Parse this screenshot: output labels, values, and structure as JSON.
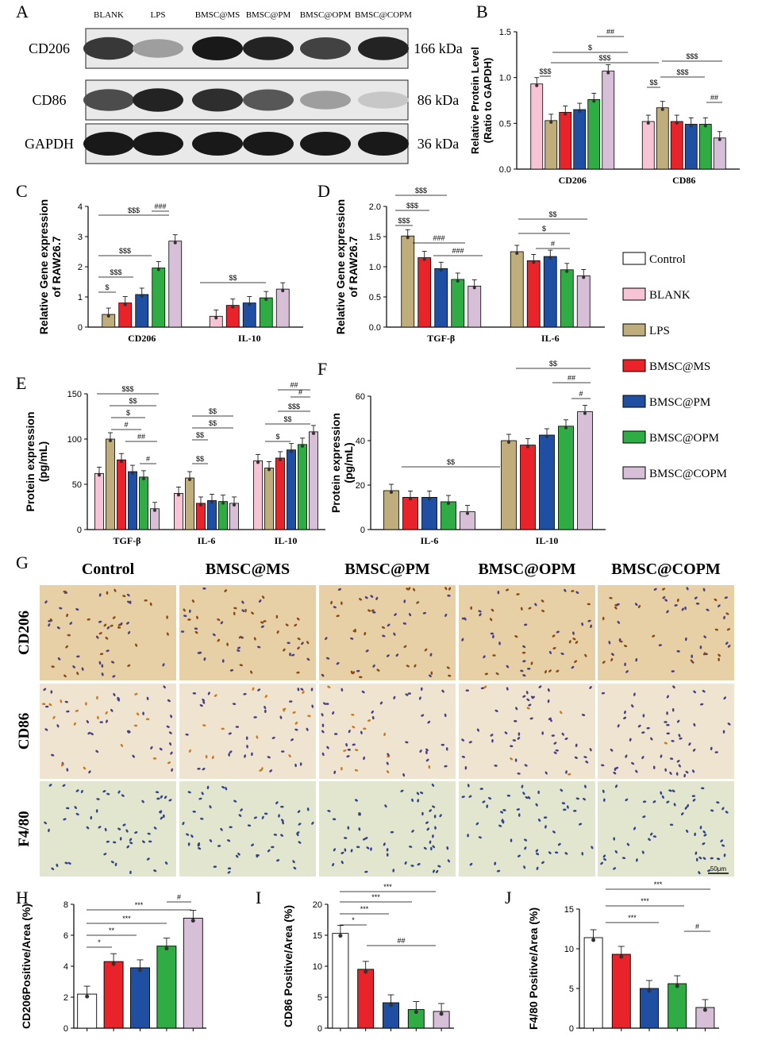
{
  "panel_letters": {
    "A": "A",
    "B": "B",
    "C": "C",
    "D": "D",
    "E": "E",
    "F": "F",
    "G": "G",
    "H": "H",
    "I": "I",
    "J": "J"
  },
  "colors": {
    "Control": "#ffffff",
    "BLANK": "#f6c4d4",
    "LPS": "#bfae7c",
    "BMSC@MS": "#e8232a",
    "BMSC@PM": "#1f4fa3",
    "BMSC@OPM": "#2fac44",
    "BMSC@COPM": "#d8bfd8"
  },
  "legend": {
    "items": [
      "Control",
      "BLANK",
      "LPS",
      "BMSC@MS",
      "BMSC@PM",
      "BMSC@OPM",
      "BMSC@COPM"
    ]
  },
  "western_blot": {
    "lanes": [
      "BLANK",
      "LPS",
      "BMSC@MS",
      "BMSC@PM",
      "BMSC@OPM",
      "BMSC@COPM"
    ],
    "rows": [
      {
        "name": "CD206",
        "kda": "166 kDa",
        "intensity": [
          0.85,
          0.35,
          1.0,
          0.95,
          0.8,
          0.95
        ]
      },
      {
        "name": "CD86",
        "kda": "86 kDa",
        "intensity": [
          0.75,
          0.95,
          0.9,
          0.7,
          0.35,
          0.15
        ]
      },
      {
        "name": "GAPDH",
        "kda": "36 kDa",
        "intensity": [
          1.0,
          1.0,
          1.0,
          1.0,
          1.0,
          1.0
        ]
      }
    ]
  },
  "histology": {
    "columns": [
      "Control",
      "BMSC@MS",
      "BMSC@PM",
      "BMSC@OPM",
      "BMSC@COPM"
    ],
    "rows": [
      "CD206",
      "CD86",
      "F4/80"
    ],
    "scale_label": "50μm"
  },
  "chart_data": [
    {
      "panel": "B",
      "type": "bar",
      "ylabel": "Relative Protein Level\n(Ratio to GAPDH)",
      "ylim": [
        0,
        1.5
      ],
      "yticks": [
        "0.0",
        "0.5",
        "1.0",
        "1.5"
      ],
      "categories": [
        "CD206",
        "CD86"
      ],
      "series": [
        {
          "name": "BLANK",
          "values": [
            0.93,
            0.52
          ]
        },
        {
          "name": "LPS",
          "values": [
            0.53,
            0.67
          ]
        },
        {
          "name": "BMSC@MS",
          "values": [
            0.62,
            0.52
          ]
        },
        {
          "name": "BMSC@PM",
          "values": [
            0.65,
            0.49
          ]
        },
        {
          "name": "BMSC@OPM",
          "values": [
            0.76,
            0.49
          ]
        },
        {
          "name": "BMSC@COPM",
          "values": [
            1.07,
            0.34
          ]
        }
      ],
      "annotations": [
        "$$$",
        "$$$",
        "$",
        "##",
        "$$",
        "$$$",
        "$$$",
        "##"
      ]
    },
    {
      "panel": "C",
      "type": "bar",
      "ylabel": "Relative Gene expression\nof RAW26.7",
      "ylim": [
        0,
        4
      ],
      "yticks": [
        "0",
        "1",
        "2",
        "3",
        "4"
      ],
      "categories": [
        "CD206",
        "IL-10"
      ],
      "series": [
        {
          "name": "LPS",
          "values": [
            0.42,
            null
          ]
        },
        {
          "name": "BLANK",
          "values": [
            null,
            0.36
          ]
        },
        {
          "name": "BMSC@MS",
          "values": [
            0.8,
            0.72
          ]
        },
        {
          "name": "BMSC@PM",
          "values": [
            1.08,
            0.8
          ]
        },
        {
          "name": "BMSC@OPM",
          "values": [
            1.96,
            0.97
          ]
        },
        {
          "name": "BMSC@COPM",
          "values": [
            2.85,
            1.26
          ]
        }
      ],
      "annotations": [
        "$",
        "$$$",
        "$$$",
        "$$$",
        "###",
        "$$"
      ]
    },
    {
      "panel": "D",
      "type": "bar",
      "ylabel": "Relative Gene expression\nof RAW26.7",
      "ylim": [
        0,
        2.0
      ],
      "yticks": [
        "0.0",
        "0.5",
        "1.0",
        "1.5",
        "2.0"
      ],
      "categories": [
        "TGF-β",
        "IL-6"
      ],
      "series": [
        {
          "name": "LPS",
          "values": [
            1.51,
            1.25
          ]
        },
        {
          "name": "BMSC@MS",
          "values": [
            1.15,
            1.1
          ]
        },
        {
          "name": "BMSC@PM",
          "values": [
            0.97,
            1.17
          ]
        },
        {
          "name": "BMSC@OPM",
          "values": [
            0.79,
            0.95
          ]
        },
        {
          "name": "BMSC@COPM",
          "values": [
            0.68,
            0.85
          ]
        }
      ],
      "annotations": [
        "$$$",
        "$$$",
        "$$$",
        "###",
        "###",
        "$$",
        "$",
        "#"
      ]
    },
    {
      "panel": "E",
      "type": "bar",
      "ylabel": "Protein expression\n(pg/mL)",
      "ylim": [
        0,
        150
      ],
      "yticks": [
        "0",
        "50",
        "100",
        "150"
      ],
      "categories": [
        "TGF-β",
        "IL-6",
        "IL-10"
      ],
      "series": [
        {
          "name": "BLANK",
          "values": [
            62,
            40,
            76
          ]
        },
        {
          "name": "LPS",
          "values": [
            100,
            57,
            68
          ]
        },
        {
          "name": "BMSC@MS",
          "values": [
            77,
            29,
            79
          ]
        },
        {
          "name": "BMSC@PM",
          "values": [
            64,
            32,
            88
          ]
        },
        {
          "name": "BMSC@OPM",
          "values": [
            58,
            31,
            94
          ]
        },
        {
          "name": "BMSC@COPM",
          "values": [
            23,
            29,
            108
          ]
        }
      ],
      "annotations": [
        "$$$",
        "$$",
        "$",
        "#",
        "##",
        "#",
        "$$",
        "$$",
        "$$",
        "$$",
        "##",
        "#",
        "$$$",
        "$$",
        "$"
      ]
    },
    {
      "panel": "F",
      "type": "bar",
      "ylabel": "Protein expression\n(pg/mL)",
      "ylim": [
        0,
        60
      ],
      "yticks": [
        "0",
        "20",
        "40",
        "60"
      ],
      "categories": [
        "IL-6",
        "IL-10"
      ],
      "series": [
        {
          "name": "LPS",
          "values": [
            17.5,
            40
          ]
        },
        {
          "name": "BMSC@MS",
          "values": [
            14.5,
            38
          ]
        },
        {
          "name": "BMSC@PM",
          "values": [
            14.5,
            42.5
          ]
        },
        {
          "name": "BMSC@OPM",
          "values": [
            12.5,
            46.5
          ]
        },
        {
          "name": "BMSC@COPM",
          "values": [
            8,
            53
          ]
        }
      ],
      "annotations": [
        "$$",
        "$$",
        "##",
        "#"
      ]
    },
    {
      "panel": "H",
      "type": "bar",
      "ylabel": "CD206Positive/Area (%)",
      "ylim": [
        0,
        8
      ],
      "yticks": [
        "0",
        "2",
        "4",
        "6",
        "8"
      ],
      "categories": [
        "Control",
        "BMSC@MS",
        "BMSC@PM",
        "BMSC@OPM",
        "BMSC@COPM"
      ],
      "values": [
        2.2,
        4.3,
        3.9,
        5.3,
        7.1
      ],
      "annotations": [
        "*",
        "**",
        "***",
        "***",
        "#"
      ]
    },
    {
      "panel": "I",
      "type": "bar",
      "ylabel": "CD86 Positive/Area (%)",
      "ylim": [
        0,
        20
      ],
      "yticks": [
        "0",
        "5",
        "10",
        "15",
        "20"
      ],
      "categories": [
        "Control",
        "BMSC@MS",
        "BMSC@PM",
        "BMSC@OPM",
        "BMSC@COPM"
      ],
      "values": [
        15.3,
        9.5,
        4.1,
        3.0,
        2.7
      ],
      "annotations": [
        "*",
        "***",
        "***",
        "***",
        "##"
      ]
    },
    {
      "panel": "J",
      "type": "bar",
      "ylabel": "F4/80 Positive/Area (%)",
      "ylim": [
        0,
        15
      ],
      "yticks": [
        "0",
        "5",
        "10",
        "15"
      ],
      "categories": [
        "Control",
        "BMSC@MS",
        "BMSC@PM",
        "BMSC@OPM",
        "BMSC@COPM"
      ],
      "values": [
        11.4,
        9.3,
        5.0,
        5.6,
        2.6
      ],
      "annotations": [
        "***",
        "***",
        "***",
        "#"
      ]
    }
  ]
}
